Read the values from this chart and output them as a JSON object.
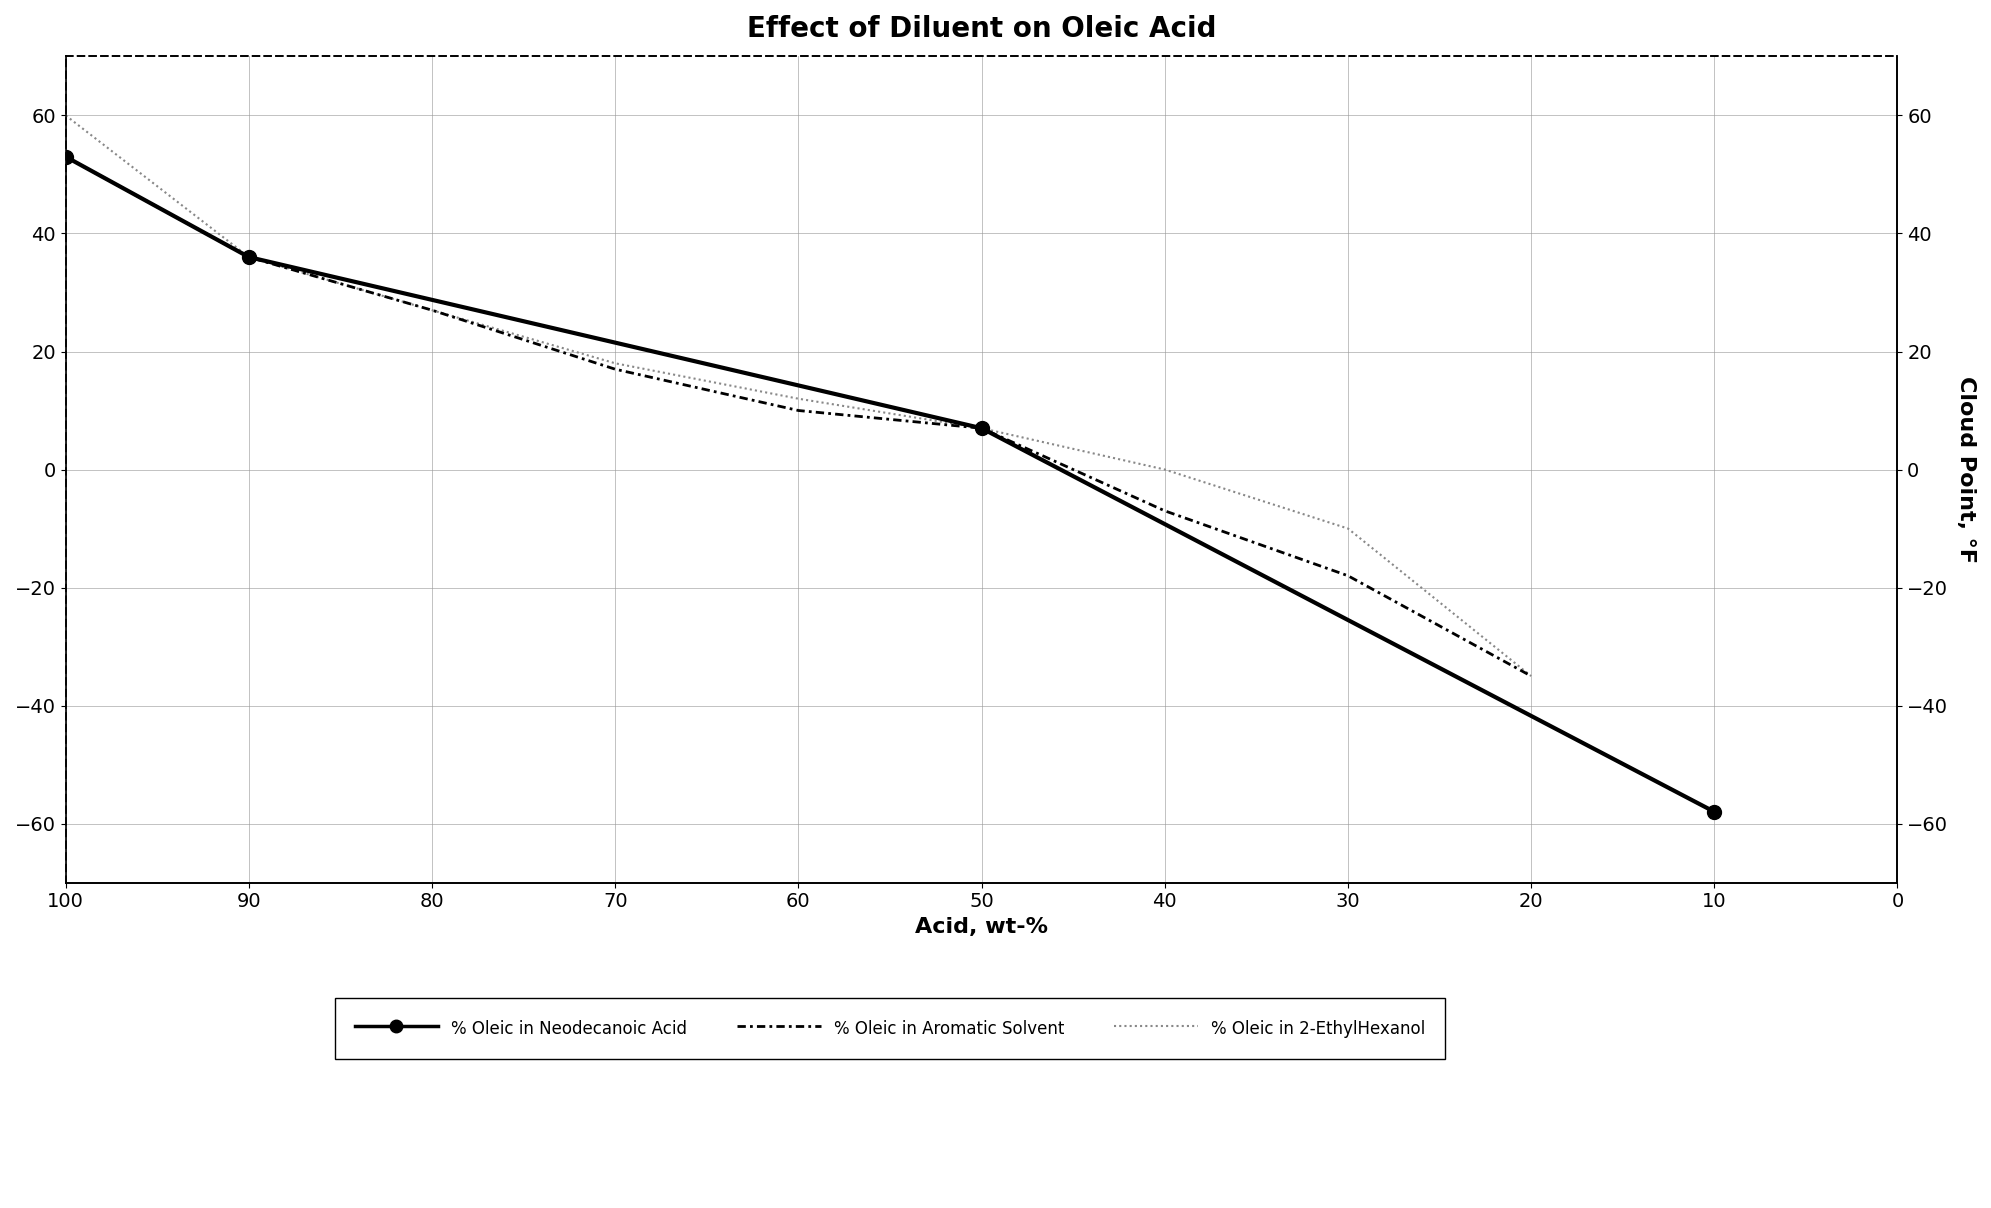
{
  "title": "Effect of Diluent on Oleic Acid",
  "xlabel": "Acid, wt-%",
  "ylabel_right": "Cloud Point, °F",
  "series": {
    "neodecanoic": {
      "x": [
        100,
        90,
        50,
        10
      ],
      "y": [
        53,
        36,
        7,
        -58
      ],
      "label": "% Oleic in Neodecanoic Acid",
      "color": "#000000",
      "linewidth": 3.0,
      "linestyle": "solid",
      "marker": "o",
      "markersize": 10,
      "markerfacecolor": "#000000",
      "markeredgecolor": "#000000",
      "zorder": 5
    },
    "aromatic": {
      "x": [
        100,
        90,
        80,
        70,
        60,
        50,
        40,
        30,
        20
      ],
      "y": [
        53,
        36,
        27,
        17,
        10,
        7,
        -7,
        -18,
        -35
      ],
      "label": "% Oleic in Aromatic Solvent",
      "color": "#000000",
      "linewidth": 2.0,
      "zorder": 3
    },
    "ethylhexanol": {
      "x": [
        100,
        90,
        80,
        70,
        60,
        50,
        40,
        30,
        20
      ],
      "y": [
        60,
        36,
        27,
        18,
        12,
        7,
        0,
        -10,
        -35
      ],
      "label": "% Oleic in 2-EthylHexanol",
      "color": "#888888",
      "linewidth": 1.5,
      "zorder": 2
    }
  },
  "xlim": [
    0,
    100
  ],
  "ylim": [
    -70,
    70
  ],
  "xticks": [
    0,
    10,
    20,
    30,
    40,
    50,
    60,
    70,
    80,
    90,
    100
  ],
  "yticks": [
    -60,
    -40,
    -20,
    0,
    20,
    40,
    60
  ],
  "background_color": "#ffffff",
  "grid_color": "#999999",
  "title_fontsize": 20,
  "label_fontsize": 16,
  "tick_fontsize": 14
}
